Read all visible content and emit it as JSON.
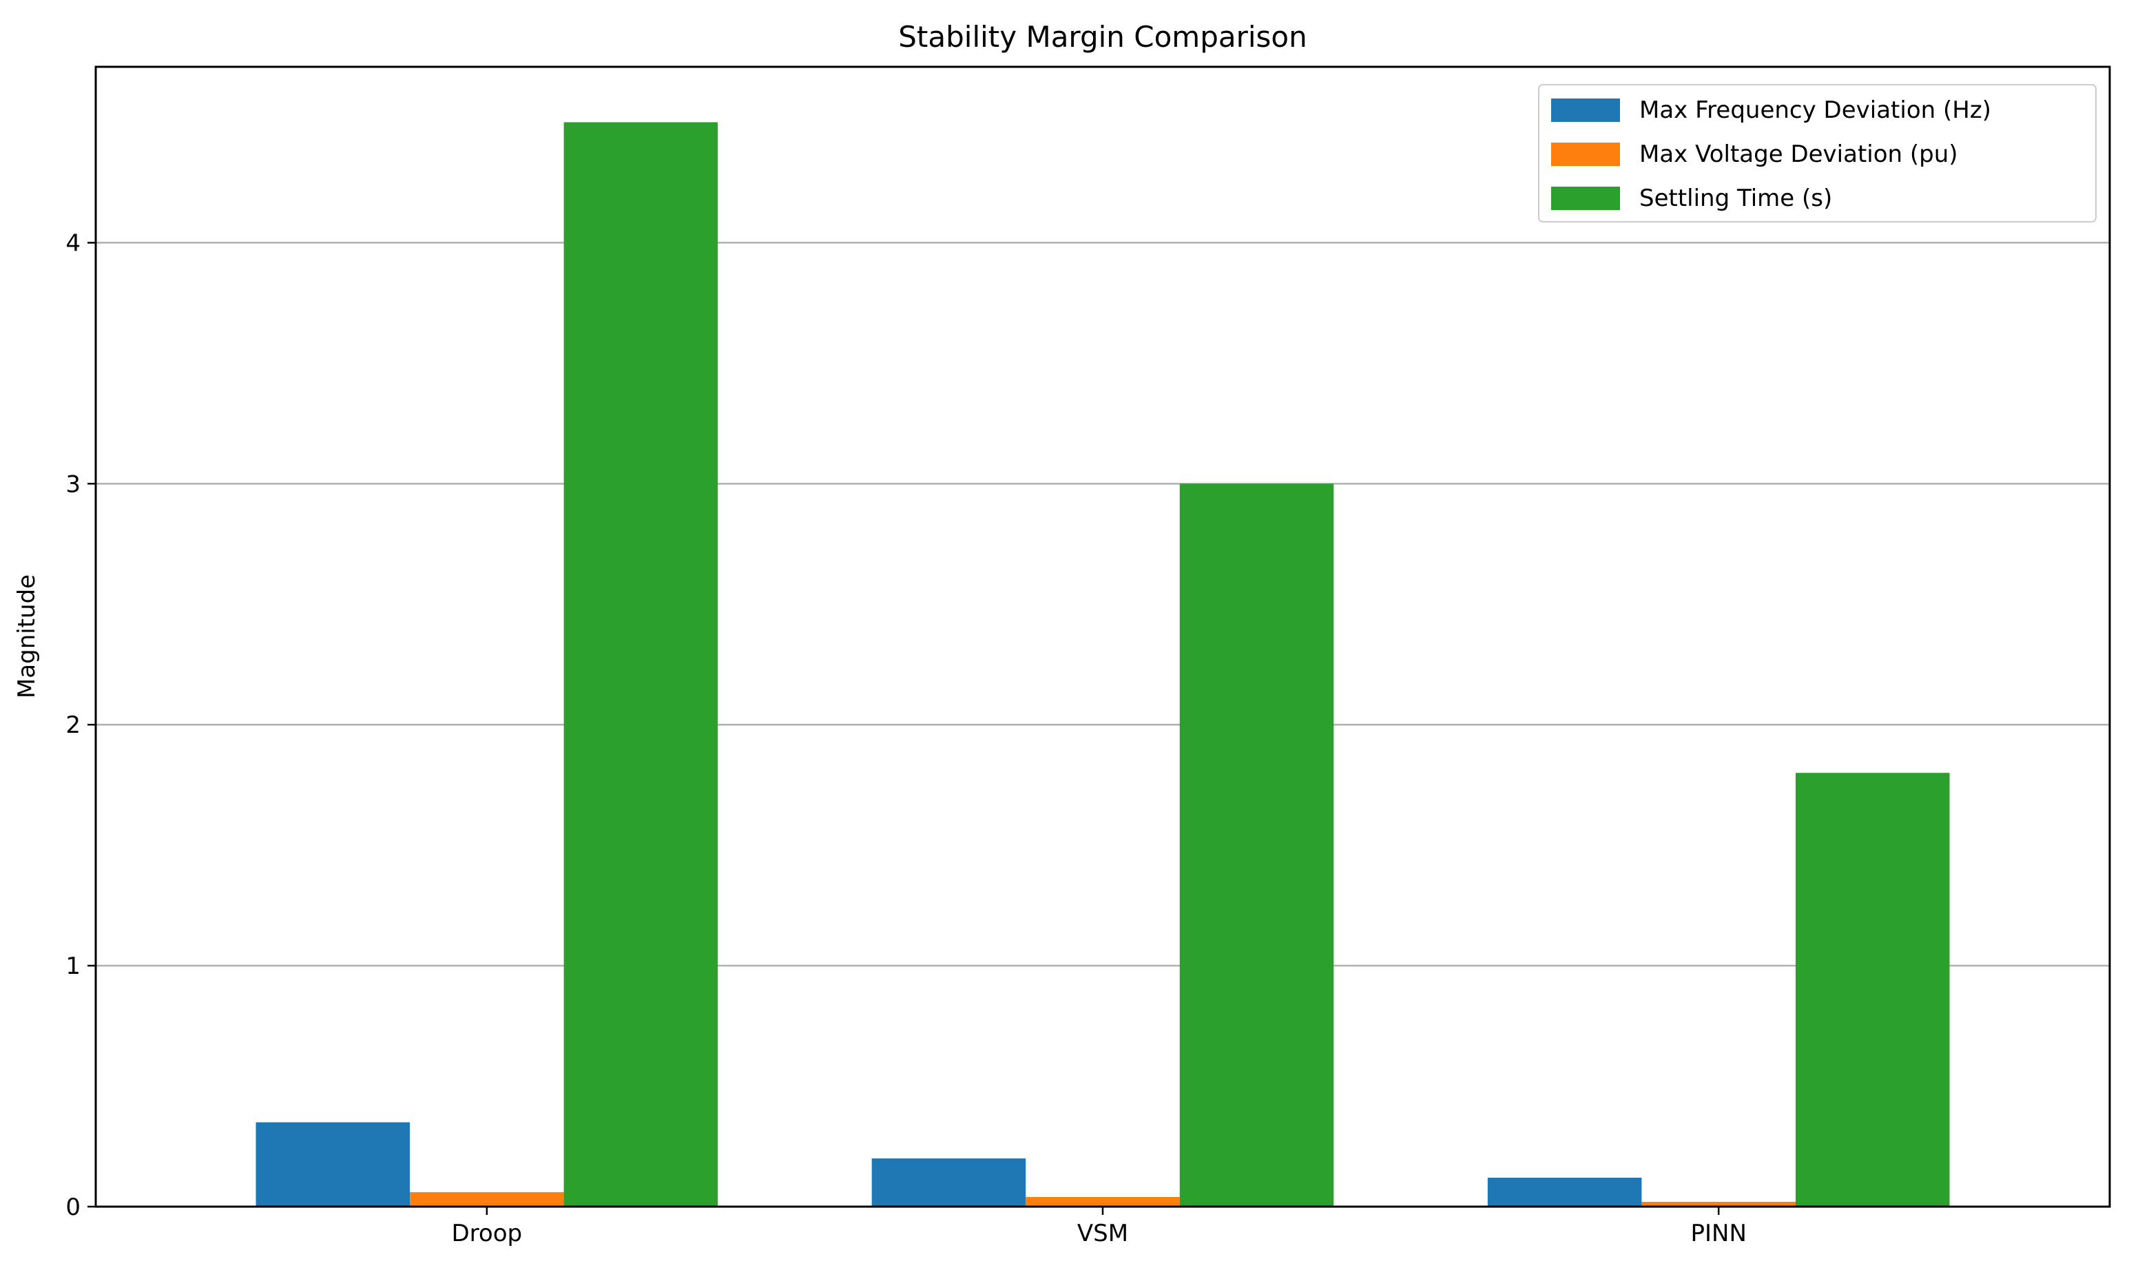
{
  "chart_data": {
    "type": "bar",
    "title": "Stability Margin Comparison",
    "xlabel": "",
    "ylabel": "Magnitude",
    "categories": [
      "Droop",
      "VSM",
      "PINN"
    ],
    "series": [
      {
        "name": "Max Frequency Deviation (Hz)",
        "values": [
          0.35,
          0.2,
          0.12
        ],
        "color": "#1f77b4"
      },
      {
        "name": "Max Voltage Deviation (pu)",
        "values": [
          0.06,
          0.04,
          0.02
        ],
        "color": "#ff7f0e"
      },
      {
        "name": "Settling Time (s)",
        "values": [
          4.5,
          3.0,
          1.8
        ],
        "color": "#2ca02c"
      }
    ],
    "ylim": [
      0,
      4.73
    ],
    "yticks": [
      "0",
      "1",
      "2",
      "3",
      "4"
    ],
    "grid": "horizontal",
    "legend": "top-right"
  }
}
